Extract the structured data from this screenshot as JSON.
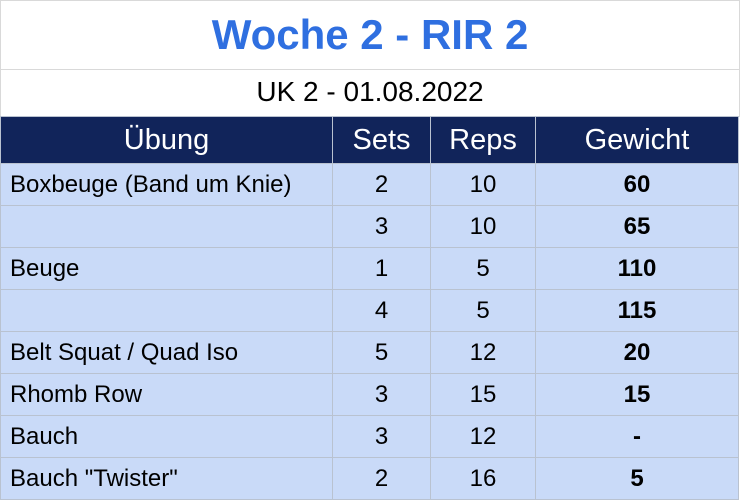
{
  "title": "Woche 2 - RIR 2",
  "subtitle": "UK 2 - 01.08.2022",
  "columns": [
    "Übung",
    "Sets",
    "Reps",
    "Gewicht"
  ],
  "rows": [
    {
      "exercise": "Boxbeuge (Band um Knie)",
      "sets": "2",
      "reps": "10",
      "weight": "60"
    },
    {
      "exercise": "",
      "sets": "3",
      "reps": "10",
      "weight": "65"
    },
    {
      "exercise": "Beuge",
      "sets": "1",
      "reps": "5",
      "weight": "110"
    },
    {
      "exercise": "",
      "sets": "4",
      "reps": "5",
      "weight": "115"
    },
    {
      "exercise": "Belt Squat / Quad Iso",
      "sets": "5",
      "reps": "12",
      "weight": "20"
    },
    {
      "exercise": "Rhomb Row",
      "sets": "3",
      "reps": "15",
      "weight": "15"
    },
    {
      "exercise": "Bauch",
      "sets": "3",
      "reps": "12",
      "weight": "-"
    },
    {
      "exercise": "Bauch \"Twister\"",
      "sets": "2",
      "reps": "16",
      "weight": "5"
    }
  ],
  "colors": {
    "title": "#2f6fe0",
    "header_bg": "#11245a",
    "row_bg": "#c9daf8"
  }
}
